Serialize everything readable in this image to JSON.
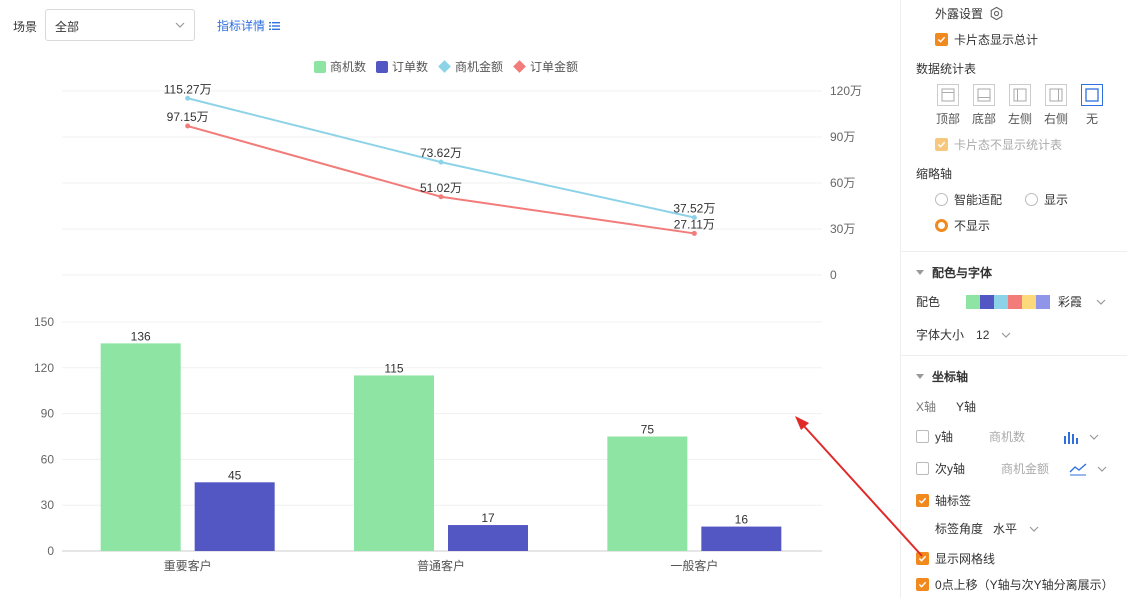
{
  "filter": {
    "scene_label": "场景",
    "scene_value": "全部",
    "metric_link": "指标详情"
  },
  "legend": [
    {
      "name": "商机数",
      "color": "#8ee4a3",
      "shape": "square"
    },
    {
      "name": "订单数",
      "color": "#5357c4",
      "shape": "square"
    },
    {
      "name": "商机金额",
      "color": "#8dd3e8",
      "shape": "diamond"
    },
    {
      "name": "订单金额",
      "color": "#f27c7a",
      "shape": "diamond"
    }
  ],
  "chart_data": {
    "type": "bar",
    "categories": [
      "重要客户",
      "普通客户",
      "一般客户"
    ],
    "series": [
      {
        "name": "商机数",
        "type": "bar",
        "axis": "left",
        "values": [
          136,
          115,
          75
        ],
        "labels": [
          "136",
          "115",
          "75"
        ]
      },
      {
        "name": "订单数",
        "type": "bar",
        "axis": "left",
        "values": [
          45,
          17,
          16
        ],
        "labels": [
          "45",
          "17",
          "16"
        ]
      },
      {
        "name": "商机金额",
        "type": "line",
        "axis": "right",
        "values": [
          1152700,
          736200,
          375200
        ],
        "labels": [
          "115.27万",
          "73.62万",
          "37.52万"
        ]
      },
      {
        "name": "订单金额",
        "type": "line",
        "axis": "right",
        "values": [
          971500,
          510200,
          271100
        ],
        "labels": [
          "97.15万",
          "51.02万",
          "27.11万"
        ]
      }
    ],
    "left_axis": {
      "ticks": [
        "0",
        "30",
        "60",
        "90",
        "120",
        "150"
      ],
      "ylim": [
        0,
        150
      ]
    },
    "right_axis": {
      "ticks": [
        "0",
        "30万",
        "60万",
        "90万",
        "120万"
      ],
      "ylim": [
        0,
        1200000
      ]
    },
    "grid": true,
    "legend_position": "top"
  },
  "panel": {
    "exposure_settings": "外露设置",
    "card_show_total": "卡片态显示总计",
    "data_stats_table": "数据统计表",
    "positions": [
      {
        "label": "顶部",
        "selected": false
      },
      {
        "label": "底部",
        "selected": false
      },
      {
        "label": "左侧",
        "selected": false
      },
      {
        "label": "右侧",
        "selected": false
      },
      {
        "label": "无",
        "selected": true
      }
    ],
    "card_hide_stats": "卡片态不显示统计表",
    "thumbnail_axis": "缩略轴",
    "thumb_smart": "智能适配",
    "thumb_show": "显示",
    "thumb_hide": "不显示",
    "color_font_section": "配色与字体",
    "color_label": "配色",
    "color_scheme_name": "彩霞",
    "color_swatches": [
      "#8ee4a3",
      "#5357c4",
      "#8dd3e8",
      "#f27c7a",
      "#fcd97a",
      "#8f95e8"
    ],
    "font_size_label": "字体大小",
    "font_size_value": "12",
    "axis_section": "坐标轴",
    "x_axis_tab": "X轴",
    "y_axis_tab": "Y轴",
    "y_axis_label": "y轴",
    "y_axis_field": "商机数",
    "secondary_y_label": "次y轴",
    "secondary_y_field": "商机金额",
    "axis_label_toggle": "轴标签",
    "label_angle_label": "标签角度",
    "label_angle_value": "水平",
    "show_grid": "显示网格线",
    "zero_shift": "0点上移（Y轴与次Y轴分离展示）"
  }
}
